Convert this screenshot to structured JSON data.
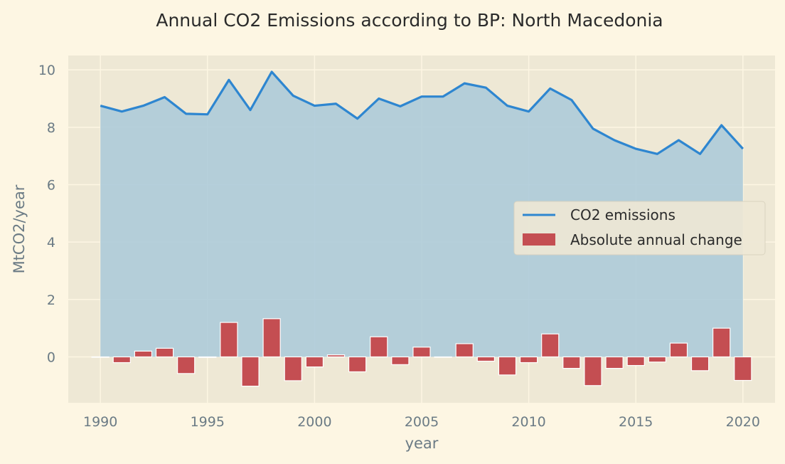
{
  "chart_data": {
    "type": "line+bar",
    "title": "Annual CO2 Emissions according to BP: North Macedonia",
    "xlabel": "year",
    "ylabel": "MtCO2/year",
    "xlim": [
      1988.5,
      2021.5
    ],
    "ylim": [
      -1.6,
      10.5
    ],
    "xticks": [
      1990,
      1995,
      2000,
      2005,
      2010,
      2015,
      2020
    ],
    "yticks": [
      0,
      2,
      4,
      6,
      8,
      10
    ],
    "grid": true,
    "legend_position": "center-right",
    "x": [
      1990,
      1991,
      1992,
      1993,
      1994,
      1995,
      1996,
      1997,
      1998,
      1999,
      2000,
      2001,
      2002,
      2003,
      2004,
      2005,
      2006,
      2007,
      2008,
      2009,
      2010,
      2011,
      2012,
      2013,
      2014,
      2015,
      2016,
      2017,
      2018,
      2019,
      2020
    ],
    "series": [
      {
        "name": "CO2 emissions",
        "type": "line",
        "color": "#2e86d0",
        "fill_color": "#a9c9d9",
        "values": [
          8.75,
          8.55,
          8.75,
          9.05,
          8.47,
          8.45,
          9.65,
          8.6,
          9.93,
          9.1,
          8.75,
          8.82,
          8.3,
          9.0,
          8.73,
          9.07,
          9.07,
          9.53,
          9.38,
          8.75,
          8.55,
          9.35,
          8.95,
          7.95,
          7.55,
          7.25,
          7.07,
          7.55,
          7.07,
          8.07,
          7.25
        ]
      },
      {
        "name": "Absolute annual change",
        "type": "bar",
        "color": "#c44e52",
        "values": [
          0,
          -0.2,
          0.2,
          0.3,
          -0.58,
          -0.02,
          1.2,
          -1.02,
          1.33,
          -0.83,
          -0.35,
          0.07,
          -0.52,
          0.7,
          -0.27,
          0.34,
          0,
          0.46,
          -0.15,
          -0.63,
          -0.2,
          0.8,
          -0.4,
          -1.0,
          -0.4,
          -0.3,
          -0.18,
          0.48,
          -0.48,
          1.0,
          -0.82
        ]
      }
    ]
  }
}
